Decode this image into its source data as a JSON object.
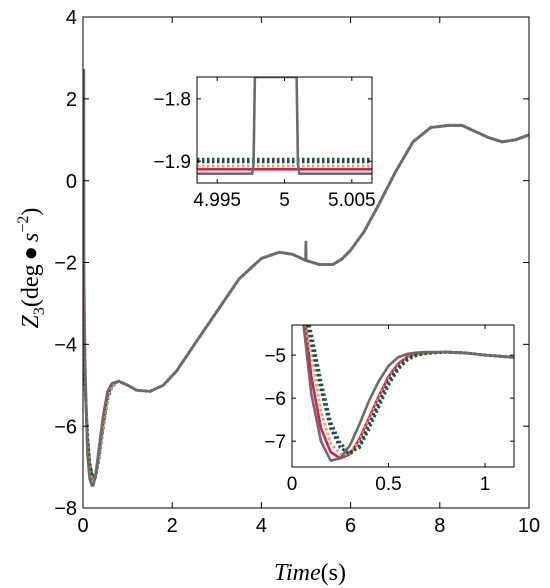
{
  "chart_data": {
    "type": "line",
    "main": {
      "xlabel_var": "Time",
      "xlabel_unit": "(s)",
      "ylabel_var": "Z",
      "ylabel_sub": "3",
      "ylabel_unit_open": "(deg",
      "ylabel_bullet": "●",
      "ylabel_unit_s": "s",
      "ylabel_exp": "−2",
      "ylabel_close": ")",
      "xlim": [
        0,
        10
      ],
      "ylim": [
        -8,
        4
      ],
      "xticks": [
        0,
        2,
        4,
        6,
        8,
        10
      ],
      "xtick_labels": [
        "0",
        "2",
        "4",
        "6",
        "8",
        "10"
      ],
      "yticks": [
        -8,
        -6,
        -4,
        -2,
        0,
        2,
        4
      ],
      "ytick_labels": [
        "−8",
        "−6",
        "−4",
        "−2",
        "0",
        "2",
        "4"
      ],
      "grid": false,
      "series": [
        {
          "color": "#d81b60",
          "style": "solid",
          "x": [
            0,
            0.02,
            0.05,
            0.1,
            0.15,
            0.2,
            0.23,
            0.28,
            0.35,
            0.45,
            0.55,
            0.65,
            0.8,
            1.0,
            1.2,
            1.5,
            1.8,
            2.1,
            2.5,
            3.0,
            3.5,
            4.0,
            4.4,
            4.7,
            5.0,
            5.3,
            5.6,
            5.8,
            6.0,
            6.3,
            6.6,
            7.0,
            7.4,
            7.8,
            8.2,
            8.5,
            8.8,
            9.1,
            9.4,
            9.7,
            10.0
          ],
          "y": [
            0.0,
            -2.0,
            -4.6,
            -6.6,
            -7.2,
            -7.35,
            -7.4,
            -7.25,
            -6.7,
            -5.9,
            -5.25,
            -4.98,
            -4.9,
            -5.0,
            -5.12,
            -5.15,
            -5.0,
            -4.65,
            -4.0,
            -3.2,
            -2.4,
            -1.9,
            -1.75,
            -1.8,
            -1.95,
            -2.05,
            -2.05,
            -1.92,
            -1.7,
            -1.25,
            -0.65,
            0.2,
            0.95,
            1.3,
            1.35,
            1.35,
            1.2,
            1.05,
            0.95,
            1.0,
            1.12
          ]
        },
        {
          "color": "#1f3a93",
          "style": "dotted",
          "x": [
            0,
            0.02,
            0.05,
            0.1,
            0.15,
            0.2,
            0.23,
            0.28,
            0.35,
            0.45,
            0.55,
            0.65,
            0.8,
            1.0,
            1.2,
            1.5,
            1.8,
            2.1,
            2.5,
            3.0,
            3.5,
            4.0,
            4.4,
            4.7,
            5.0,
            5.3,
            5.6,
            5.8,
            6.0,
            6.3,
            6.6,
            7.0,
            7.4,
            7.8,
            8.2,
            8.5,
            8.8,
            9.1,
            9.4,
            9.7,
            10.0
          ],
          "y": [
            -3.2,
            -4.0,
            -5.0,
            -6.3,
            -6.95,
            -7.2,
            -7.3,
            -7.25,
            -6.85,
            -6.05,
            -5.35,
            -5.03,
            -4.9,
            -5.0,
            -5.12,
            -5.15,
            -5.0,
            -4.65,
            -4.0,
            -3.2,
            -2.4,
            -1.9,
            -1.75,
            -1.8,
            -1.95,
            -2.05,
            -2.05,
            -1.92,
            -1.7,
            -1.25,
            -0.65,
            0.2,
            0.95,
            1.3,
            1.35,
            1.35,
            1.2,
            1.05,
            0.95,
            1.0,
            1.12
          ]
        },
        {
          "color": "#1b5e20",
          "style": "dotted",
          "x": [
            0,
            0.02,
            0.05,
            0.1,
            0.15,
            0.2,
            0.23,
            0.28,
            0.35,
            0.45,
            0.55,
            0.65,
            0.8,
            1.0,
            1.2,
            1.5,
            1.8,
            2.1,
            2.5,
            3.0,
            3.5,
            4.0,
            4.4,
            4.7,
            5.0,
            5.3,
            5.6,
            5.8,
            6.0,
            6.3,
            6.6,
            7.0,
            7.4,
            7.8,
            8.2,
            8.5,
            8.8,
            9.1,
            9.4,
            9.7,
            10.0
          ],
          "y": [
            -3.5,
            -4.2,
            -5.1,
            -6.2,
            -6.9,
            -7.15,
            -7.25,
            -7.2,
            -6.8,
            -6.0,
            -5.3,
            -5.0,
            -4.9,
            -5.0,
            -5.12,
            -5.15,
            -5.0,
            -4.65,
            -4.0,
            -3.2,
            -2.4,
            -1.9,
            -1.75,
            -1.8,
            -1.95,
            -2.05,
            -2.05,
            -1.92,
            -1.7,
            -1.25,
            -0.65,
            0.2,
            0.95,
            1.3,
            1.35,
            1.35,
            1.2,
            1.05,
            0.95,
            1.0,
            1.12
          ]
        },
        {
          "color": "#f2a33a",
          "style": "dotted",
          "x": [
            0,
            0.02,
            0.05,
            0.1,
            0.15,
            0.2,
            0.23,
            0.28,
            0.35,
            0.45,
            0.55,
            0.65,
            0.8,
            1.0,
            1.2,
            1.5,
            1.8,
            2.1,
            2.5,
            3.0,
            3.5,
            4.0,
            4.4,
            4.7,
            5.0,
            5.3,
            5.6,
            5.8,
            6.0,
            6.3,
            6.6,
            7.0,
            7.4,
            7.8,
            8.2,
            8.5,
            8.8,
            9.1,
            9.4,
            9.7,
            10.0
          ],
          "y": [
            -0.5,
            -2.5,
            -4.7,
            -6.5,
            -7.15,
            -7.3,
            -7.35,
            -7.22,
            -6.75,
            -5.95,
            -5.3,
            -5.0,
            -4.9,
            -5.0,
            -5.12,
            -5.15,
            -5.0,
            -4.65,
            -4.0,
            -3.2,
            -2.4,
            -1.9,
            -1.75,
            -1.8,
            -1.95,
            -2.05,
            -2.05,
            -1.92,
            -1.7,
            -1.25,
            -0.65,
            0.2,
            0.95,
            1.3,
            1.35,
            1.35,
            1.2,
            1.05,
            0.95,
            1.0,
            1.12
          ]
        },
        {
          "color": "#6b6b6b",
          "style": "solid",
          "x": [
            0,
            0.02,
            0.021,
            0.022,
            0.05,
            0.1,
            0.15,
            0.2,
            0.23,
            0.28,
            0.35,
            0.45,
            0.55,
            0.65,
            0.8,
            1.0,
            1.2,
            1.5,
            1.8,
            2.1,
            2.5,
            3.0,
            3.5,
            4.0,
            4.4,
            4.7,
            4.99,
            4.995,
            5.0,
            5.005,
            5.01,
            5.3,
            5.6,
            5.8,
            6.0,
            6.3,
            6.6,
            7.0,
            7.4,
            7.8,
            8.2,
            8.5,
            8.8,
            9.1,
            9.4,
            9.7,
            10.0
          ],
          "y": [
            0.0,
            0.0,
            2.7,
            -3.0,
            -4.8,
            -6.7,
            -7.3,
            -7.45,
            -7.45,
            -7.2,
            -6.6,
            -5.75,
            -5.15,
            -4.95,
            -4.9,
            -5.0,
            -5.12,
            -5.15,
            -5.0,
            -4.65,
            -4.0,
            -3.2,
            -2.4,
            -1.9,
            -1.75,
            -1.8,
            -1.95,
            -1.5,
            -1.5,
            -1.95,
            -1.95,
            -2.05,
            -2.05,
            -1.92,
            -1.7,
            -1.25,
            -0.65,
            0.2,
            0.95,
            1.3,
            1.35,
            1.35,
            1.2,
            1.05,
            0.95,
            1.0,
            1.12
          ]
        }
      ]
    },
    "inset_top": {
      "xlim": [
        4.9935,
        5.0065
      ],
      "ylim": [
        -1.935,
        -1.765
      ],
      "xticks": [
        4.995,
        5.0,
        5.005
      ],
      "xtick_labels": [
        "4.995",
        "5",
        "5.005"
      ],
      "yticks": [
        -1.8,
        -1.9
      ],
      "ytick_labels": [
        "−1.8",
        "−1.9"
      ],
      "series": [
        {
          "color": "#1b5e20",
          "style": "dotted",
          "x": [
            4.9935,
            5.0065
          ],
          "y": [
            -1.897,
            -1.897
          ]
        },
        {
          "color": "#1f3a93",
          "style": "dotted",
          "x": [
            4.9935,
            5.0065
          ],
          "y": [
            -1.901,
            -1.901
          ]
        },
        {
          "color": "#d81b60",
          "style": "solid",
          "x": [
            4.9935,
            5.0065
          ],
          "y": [
            -1.913,
            -1.913
          ]
        },
        {
          "color": "#f2a33a",
          "style": "dotted",
          "x": [
            4.9935,
            5.0065
          ],
          "y": [
            -1.908,
            -1.908
          ]
        },
        {
          "color": "#6b6b6b",
          "style": "solid",
          "x": [
            4.9935,
            4.9976,
            4.9977,
            4.9978,
            5.0009,
            5.001,
            5.0011,
            5.0065
          ],
          "y": [
            -1.92,
            -1.92,
            -1.905,
            -1.765,
            -1.765,
            -1.905,
            -1.92,
            -1.92
          ]
        }
      ]
    },
    "inset_bottom": {
      "xlim": [
        0,
        1.15
      ],
      "ylim": [
        -7.6,
        -4.3
      ],
      "xticks": [
        0,
        0.5,
        1
      ],
      "xtick_labels": [
        "0",
        "0.5",
        "1"
      ],
      "yticks": [
        -5,
        -6,
        -7
      ],
      "ytick_labels": [
        "−5",
        "−6",
        "−7"
      ],
      "series": [
        {
          "color": "#d81b60",
          "style": "solid",
          "x": [
            0.07,
            0.1,
            0.15,
            0.2,
            0.25,
            0.3,
            0.35,
            0.4,
            0.45,
            0.5,
            0.55,
            0.6,
            0.65,
            0.7,
            0.8,
            0.9,
            1.0,
            1.15
          ],
          "y": [
            -4.3,
            -5.5,
            -6.7,
            -7.25,
            -7.4,
            -7.3,
            -6.95,
            -6.45,
            -5.95,
            -5.5,
            -5.2,
            -5.03,
            -4.97,
            -4.95,
            -4.93,
            -4.95,
            -5.0,
            -5.05
          ]
        },
        {
          "color": "#f2a33a",
          "style": "dotted",
          "x": [
            0.07,
            0.1,
            0.15,
            0.2,
            0.25,
            0.3,
            0.35,
            0.4,
            0.45,
            0.5,
            0.55,
            0.6,
            0.65,
            0.7,
            0.8,
            0.9,
            1.0,
            1.15
          ],
          "y": [
            -4.3,
            -5.0,
            -6.3,
            -7.05,
            -7.3,
            -7.3,
            -7.0,
            -6.5,
            -6.0,
            -5.55,
            -5.25,
            -5.05,
            -4.98,
            -4.95,
            -4.93,
            -4.95,
            -5.0,
            -5.05
          ]
        },
        {
          "color": "#1f3a93",
          "style": "dotted",
          "x": [
            0.08,
            0.1,
            0.15,
            0.2,
            0.25,
            0.3,
            0.35,
            0.4,
            0.45,
            0.5,
            0.55,
            0.6,
            0.65,
            0.7,
            0.8,
            0.9,
            1.0,
            1.15
          ],
          "y": [
            -4.3,
            -4.7,
            -5.8,
            -6.7,
            -7.15,
            -7.3,
            -7.1,
            -6.6,
            -6.1,
            -5.6,
            -5.28,
            -5.07,
            -4.98,
            -4.95,
            -4.93,
            -4.95,
            -5.0,
            -5.05
          ]
        },
        {
          "color": "#1b5e20",
          "style": "dotted",
          "x": [
            0.09,
            0.1,
            0.15,
            0.2,
            0.25,
            0.3,
            0.35,
            0.4,
            0.45,
            0.5,
            0.55,
            0.6,
            0.65,
            0.7,
            0.8,
            0.9,
            1.0,
            1.15
          ],
          "y": [
            -4.3,
            -4.5,
            -5.6,
            -6.55,
            -7.05,
            -7.25,
            -7.15,
            -6.7,
            -6.2,
            -5.7,
            -5.33,
            -5.1,
            -5.0,
            -4.96,
            -4.93,
            -4.95,
            -5.0,
            -5.05
          ]
        },
        {
          "color": "#6b6b6b",
          "style": "solid",
          "x": [
            0.06,
            0.1,
            0.15,
            0.2,
            0.25,
            0.3,
            0.35,
            0.4,
            0.45,
            0.5,
            0.55,
            0.6,
            0.65,
            0.7,
            0.8,
            0.9,
            1.0,
            1.15
          ],
          "y": [
            -4.3,
            -5.9,
            -7.0,
            -7.45,
            -7.4,
            -7.1,
            -6.6,
            -6.05,
            -5.6,
            -5.25,
            -5.05,
            -4.97,
            -4.94,
            -4.93,
            -4.93,
            -4.95,
            -5.0,
            -5.05
          ]
        }
      ]
    }
  }
}
